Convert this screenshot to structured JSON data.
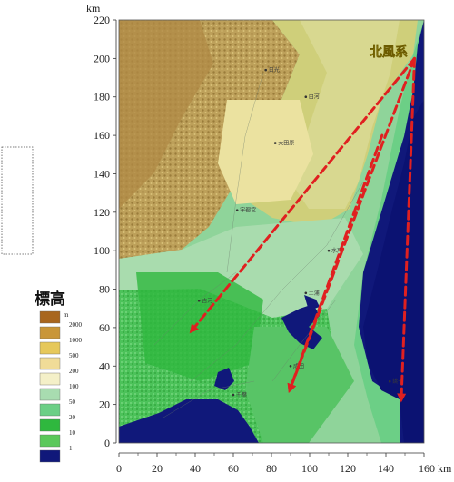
{
  "axes": {
    "unit_label": "km",
    "y_ticks": [
      "220",
      "200",
      "180",
      "160",
      "140",
      "120",
      "100",
      "80",
      "60",
      "40",
      "20",
      "0"
    ],
    "x_ticks": [
      "0",
      "20",
      "40",
      "60",
      "80",
      "100",
      "120",
      "140",
      "160 km"
    ],
    "x_range": [
      0,
      160
    ],
    "y_range": [
      0,
      220
    ]
  },
  "wind": {
    "label": "北風系",
    "color": "#e02020",
    "origin": {
      "x": 155,
      "y": 200
    },
    "arrow_targets": [
      {
        "x": 37,
        "y": 57
      },
      {
        "x": 89,
        "y": 26
      },
      {
        "x": 148,
        "y": 21
      }
    ],
    "coast_arrow": {
      "from": {
        "x": 138,
        "y": 160
      },
      "to": {
        "x": 89,
        "y": 26
      }
    }
  },
  "legend": {
    "title": "標高",
    "unit": "m",
    "levels": [
      {
        "label": "2000",
        "color": "#a8661f"
      },
      {
        "label": "1000",
        "color": "#c99638"
      },
      {
        "label": "500",
        "color": "#e6c85a"
      },
      {
        "label": "200",
        "color": "#f0dc98"
      },
      {
        "label": "100",
        "color": "#f4f0c8"
      },
      {
        "label": "50",
        "color": "#a8dcb0"
      },
      {
        "label": "20",
        "color": "#6ccf86"
      },
      {
        "label": "10",
        "color": "#2fb83e"
      },
      {
        "label": "1",
        "color": "#5ac85a"
      },
      {
        "label": "",
        "color": "#10187a"
      }
    ]
  },
  "places": [
    {
      "name": "日光",
      "x": 77,
      "y": 194
    },
    {
      "name": "白河",
      "x": 98,
      "y": 180
    },
    {
      "name": "大田原",
      "x": 82,
      "y": 156
    },
    {
      "name": "宇都宮",
      "x": 62,
      "y": 121
    },
    {
      "name": "水戸",
      "x": 110,
      "y": 100
    },
    {
      "name": "土浦",
      "x": 98,
      "y": 78
    },
    {
      "name": "古河",
      "x": 42,
      "y": 74
    },
    {
      "name": "銚子",
      "x": 142,
      "y": 32
    },
    {
      "name": "成田",
      "x": 90,
      "y": 40
    },
    {
      "name": "千葉",
      "x": 60,
      "y": 25
    }
  ]
}
